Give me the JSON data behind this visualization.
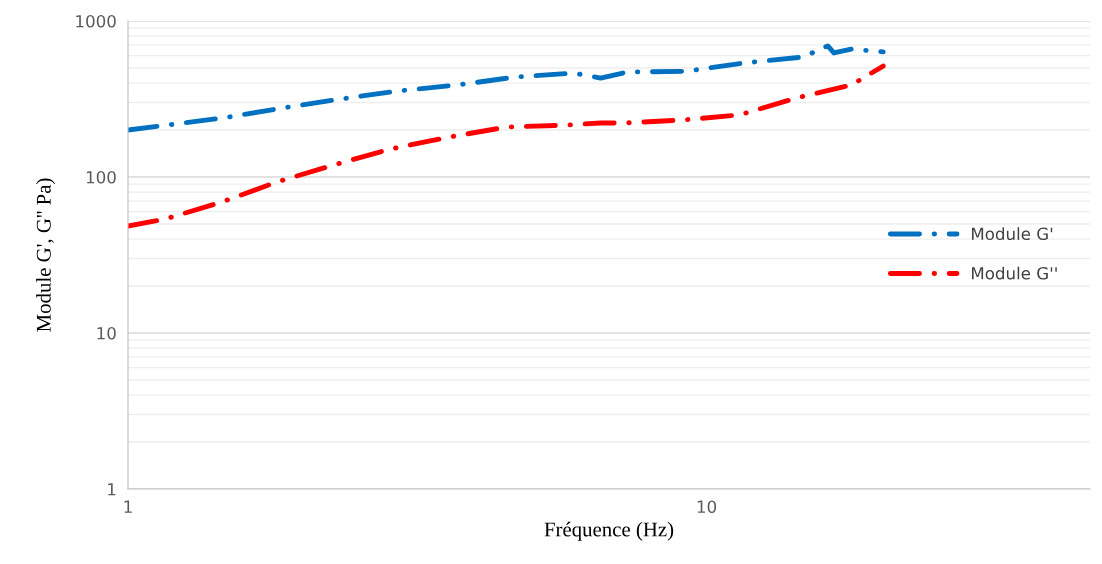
{
  "chart_data": {
    "type": "line",
    "xlabel": "Fréquence (Hz)",
    "ylabel": "Module G', G'' Pa)",
    "log": "xy",
    "xlim": [
      1,
      46
    ],
    "xticks": [
      1,
      10
    ],
    "ylim": [
      1,
      1000
    ],
    "yticks": [
      1,
      10,
      100,
      1000
    ],
    "grid": "y",
    "legend": "center right",
    "line_style": "dashdot",
    "marker": "none",
    "series": [
      {
        "name": "Module G'",
        "color": "#0070c0",
        "x": [
          1,
          1.46,
          1.85,
          2.33,
          2.93,
          3.71,
          4.67,
          5.89,
          6.56,
          7.3,
          9.2,
          11.6,
          14.7,
          16.2,
          16.6,
          17.8,
          20.2
        ],
        "values": [
          200,
          239,
          277,
          316,
          356,
          389,
          437,
          464,
          431,
          471,
          476,
          538,
          588,
          692,
          624,
          661,
          634
        ]
      },
      {
        "name": "Module G''",
        "color": "#ff0000",
        "x": [
          1,
          1.16,
          1.45,
          1.81,
          2.26,
          2.84,
          3.58,
          4.51,
          5.7,
          6.56,
          7.2,
          9.1,
          11.4,
          14.3,
          17.8,
          20.2
        ],
        "values": [
          48.5,
          53.8,
          69,
          93,
          119,
          151,
          180,
          209,
          215,
          222,
          222,
          232,
          250,
          321,
          389,
          514
        ]
      }
    ]
  }
}
